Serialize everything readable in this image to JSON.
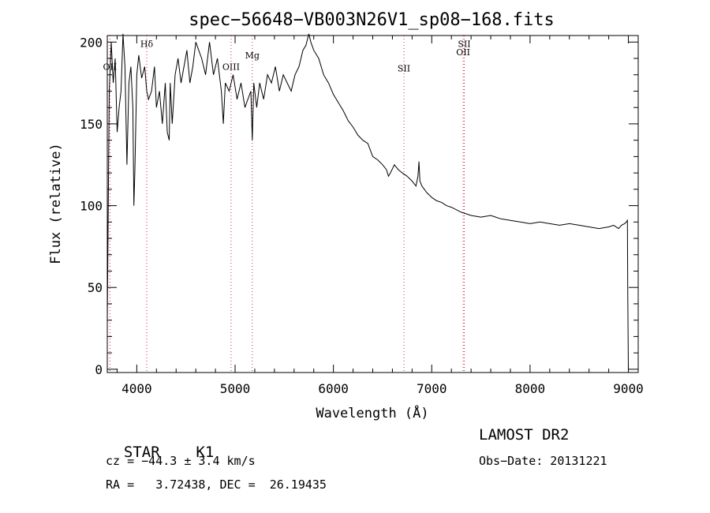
{
  "chart_data": {
    "type": "line",
    "title": "spec−56648−VB003N26V1_sp08−168.fits",
    "xlabel": "Wavelength (Å)",
    "ylabel": "Flux (relative)",
    "xlim": [
      3700,
      9100
    ],
    "ylim": [
      -2,
      204
    ],
    "x_ticks": [
      4000,
      5000,
      6000,
      7000,
      8000,
      9000
    ],
    "y_ticks": [
      0,
      50,
      100,
      150,
      200
    ],
    "series": [
      {
        "x": [
          3700,
          3720,
          3740,
          3760,
          3780,
          3800,
          3820,
          3840,
          3860,
          3880,
          3900,
          3920,
          3940,
          3960,
          3970,
          3980,
          4000,
          4020,
          4050,
          4080,
          4101,
          4120,
          4150,
          4180,
          4200,
          4230,
          4260,
          4290,
          4310,
          4330,
          4340,
          4360,
          4390,
          4420,
          4450,
          4480,
          4510,
          4540,
          4570,
          4600,
          4630,
          4660,
          4700,
          4740,
          4780,
          4820,
          4860,
          4880,
          4900,
          4940,
          4980,
          5020,
          5060,
          5100,
          5130,
          5160,
          5175,
          5190,
          5220,
          5250,
          5290,
          5330,
          5370,
          5410,
          5450,
          5490,
          5530,
          5570,
          5610,
          5650,
          5690,
          5720,
          5750,
          5770,
          5800,
          5850,
          5900,
          5950,
          6000,
          6050,
          6100,
          6150,
          6200,
          6250,
          6300,
          6350,
          6400,
          6450,
          6500,
          6540,
          6560,
          6580,
          6620,
          6660,
          6700,
          6750,
          6800,
          6840,
          6860,
          6870,
          6880,
          6900,
          6950,
          7000,
          7050,
          7100,
          7150,
          7200,
          7300,
          7400,
          7500,
          7600,
          7650,
          7700,
          7800,
          7900,
          8000,
          8100,
          8200,
          8300,
          8400,
          8500,
          8600,
          8700,
          8800,
          8850,
          8900,
          8930,
          8960,
          8980,
          8990,
          8993,
          9000
        ],
        "y": [
          30,
          170,
          200,
          175,
          190,
          145,
          160,
          170,
          205,
          185,
          125,
          175,
          185,
          160,
          100,
          120,
          180,
          192,
          178,
          185,
          170,
          165,
          170,
          185,
          160,
          170,
          150,
          175,
          145,
          140,
          175,
          150,
          180,
          190,
          175,
          185,
          195,
          175,
          185,
          200,
          195,
          190,
          180,
          200,
          180,
          190,
          170,
          150,
          175,
          170,
          180,
          165,
          175,
          160,
          165,
          170,
          140,
          175,
          160,
          175,
          165,
          180,
          175,
          185,
          170,
          180,
          175,
          170,
          180,
          185,
          195,
          198,
          205,
          200,
          195,
          190,
          180,
          175,
          168,
          163,
          158,
          152,
          148,
          143,
          140,
          138,
          130,
          128,
          125,
          122,
          118,
          120,
          125,
          122,
          120,
          118,
          115,
          112,
          118,
          127,
          115,
          112,
          108,
          105,
          103,
          102,
          100,
          99,
          96,
          94,
          93,
          94,
          93,
          92,
          91,
          90,
          89,
          90,
          89,
          88,
          89,
          88,
          87,
          86,
          87,
          88,
          86,
          88,
          89,
          90,
          91,
          50,
          0
        ]
      }
    ],
    "annotations": [
      {
        "label": "OII",
        "x": 3727,
        "y": 183
      },
      {
        "label": "Hδ",
        "x": 4101,
        "y": 197
      },
      {
        "label": "OIII",
        "x": 4959,
        "y": 183
      },
      {
        "label": "Mg",
        "x": 5175,
        "y": 190
      },
      {
        "label": "SII",
        "x": 6717,
        "y": 182
      },
      {
        "label": "OII",
        "x": 7320,
        "y": 192
      },
      {
        "label": "SII",
        "x": 7331,
        "y": 197
      }
    ]
  },
  "info": {
    "class_label": "STAR",
    "subclass": "K1",
    "survey": "LAMOST DR2",
    "cz": "cz = −44.3 ± 3.4 km/s",
    "obs_date": "Obs−Date: 20131221",
    "coords": "RA =   3.72438, DEC =  26.19435"
  }
}
